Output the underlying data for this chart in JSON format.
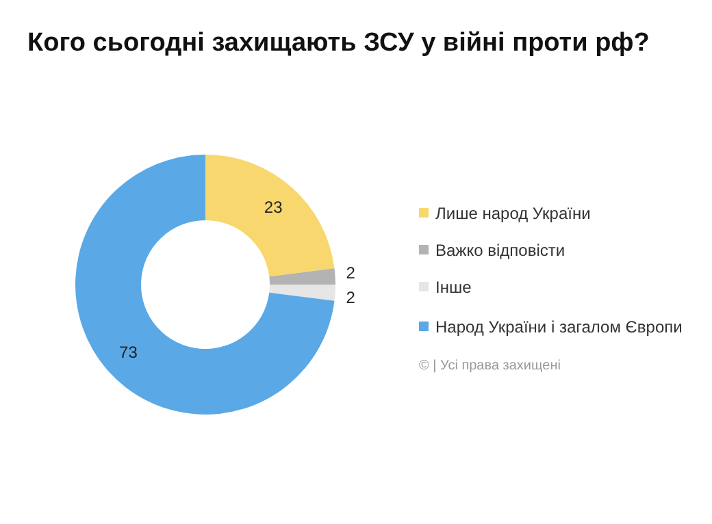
{
  "chart_data": {
    "type": "donut",
    "title": "Кого сьогодні захищають ЗСУ у війні проти рф?",
    "categories": [
      "Лише народ України",
      "Важко відповісти",
      "Інше",
      "Народ України і загалом Європи"
    ],
    "values": [
      23,
      2,
      2,
      73
    ],
    "colors": [
      "#f8d86e",
      "#b3b3b3",
      "#e6e6e6",
      "#5aa9e6"
    ],
    "data_labels": true,
    "legend": "right",
    "annotations": [
      "© | Усі права захищені"
    ]
  }
}
